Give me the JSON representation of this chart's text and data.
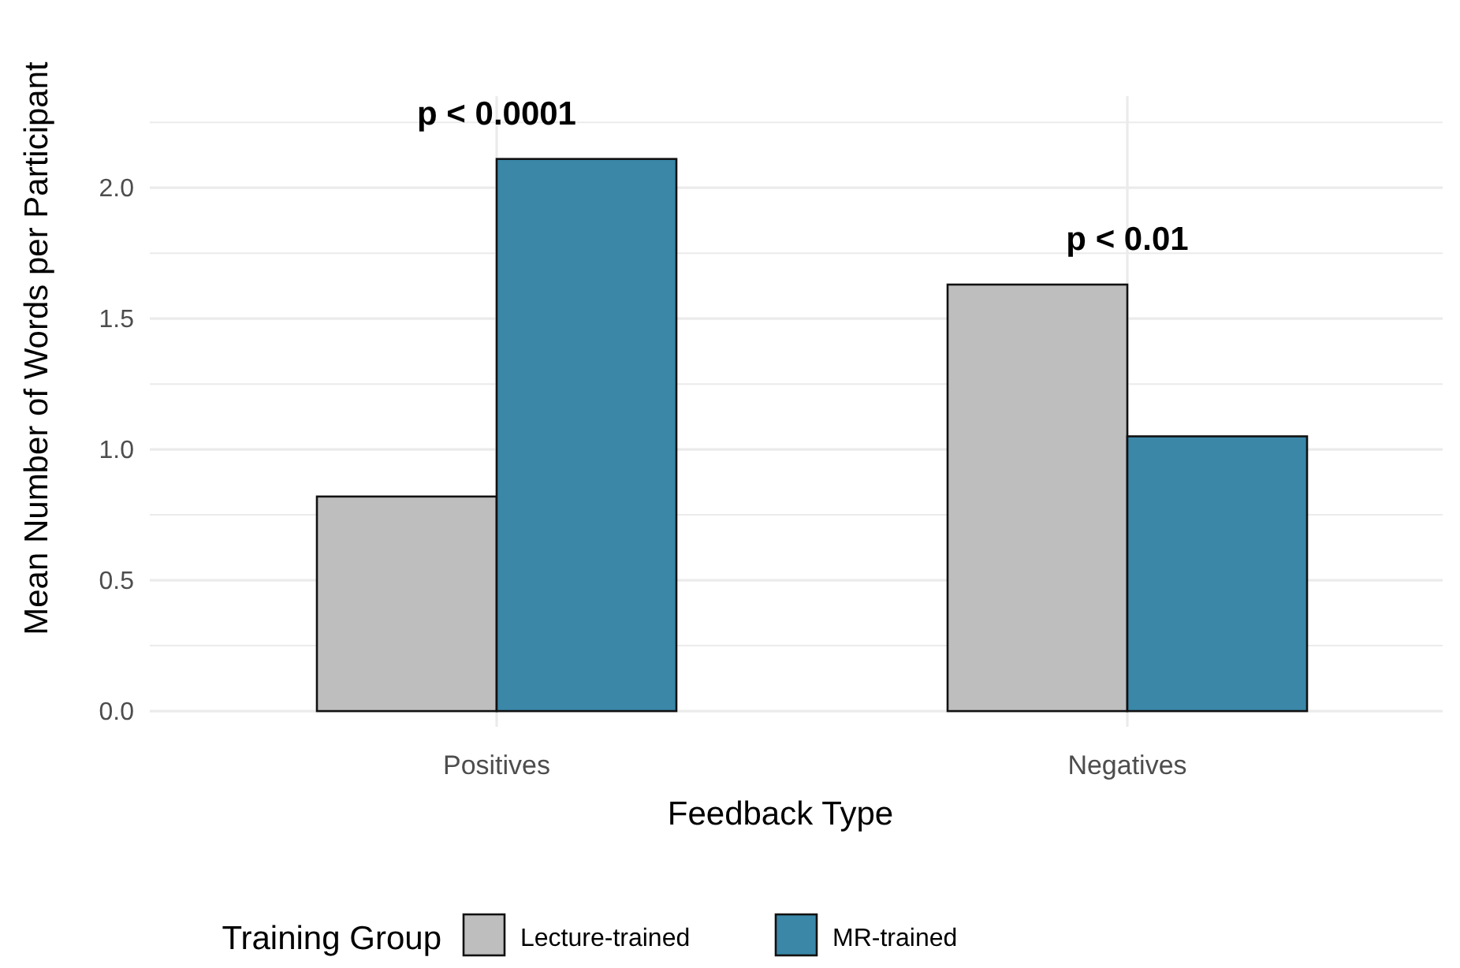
{
  "chart_data": {
    "type": "bar",
    "xlabel": "Feedback Type",
    "ylabel": "Mean Number of Words per Participant",
    "legend_title": "Training Group",
    "categories": [
      "Positives",
      "Negatives"
    ],
    "series": [
      {
        "name": "Lecture-trained",
        "color": "#bebebe",
        "values": [
          0.82,
          1.63
        ]
      },
      {
        "name": "MR-trained",
        "color": "#3a87a8",
        "values": [
          2.11,
          1.05
        ]
      }
    ],
    "ylim": [
      -0.06,
      2.35
    ],
    "yticks": [
      {
        "value": 0,
        "label": "0.0"
      },
      {
        "value": 0.25,
        "label": null
      },
      {
        "value": 0.5,
        "label": "0.5"
      },
      {
        "value": 0.75,
        "label": null
      },
      {
        "value": 1,
        "label": "1.0"
      },
      {
        "value": 1.25,
        "label": null
      },
      {
        "value": 1.5,
        "label": "1.5"
      },
      {
        "value": 1.75,
        "label": null
      },
      {
        "value": 2,
        "label": "2.0"
      },
      {
        "value": 2.25,
        "label": null
      }
    ],
    "grid": true,
    "legend": "bottom",
    "annotations": [
      "p < 0.0001",
      "p < 0.01"
    ]
  }
}
